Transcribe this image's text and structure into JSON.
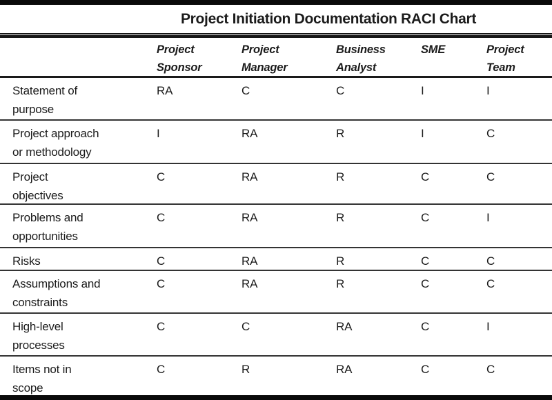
{
  "title": "Project Initiation Documentation RACI Chart",
  "table": {
    "role_columns": [
      "Project\nSponsor",
      "Project\nManager",
      "Business\nAnalyst",
      "SME",
      "Project\nTeam"
    ],
    "rows": [
      {
        "label": "Statement of\npurpose",
        "values": [
          "RA",
          "C",
          "C",
          "I",
          "I"
        ]
      },
      {
        "label": "Project approach\nor methodology",
        "values": [
          "I",
          "RA",
          "R",
          "I",
          "C"
        ]
      },
      {
        "label": "Project\nobjectives",
        "values": [
          "C",
          "RA",
          "R",
          "C",
          "C"
        ]
      },
      {
        "label": "Problems and\nopportunities",
        "values": [
          "C",
          "RA",
          "R",
          "C",
          "I"
        ]
      },
      {
        "label": "Risks",
        "values": [
          "C",
          "RA",
          "R",
          "C",
          "C"
        ]
      },
      {
        "label": "Assumptions and\nconstraints",
        "values": [
          "C",
          "RA",
          "R",
          "C",
          "C"
        ]
      },
      {
        "label": "High-level\nprocesses",
        "values": [
          "C",
          "C",
          "RA",
          "C",
          "I"
        ]
      },
      {
        "label": "Items not in\nscope",
        "values": [
          "C",
          "R",
          "RA",
          "C",
          "C"
        ]
      }
    ]
  },
  "colors": {
    "text": "#1b1b1b",
    "separator_line": "#333333",
    "border_bar": "#0a0a0a",
    "background": "#ffffff"
  }
}
